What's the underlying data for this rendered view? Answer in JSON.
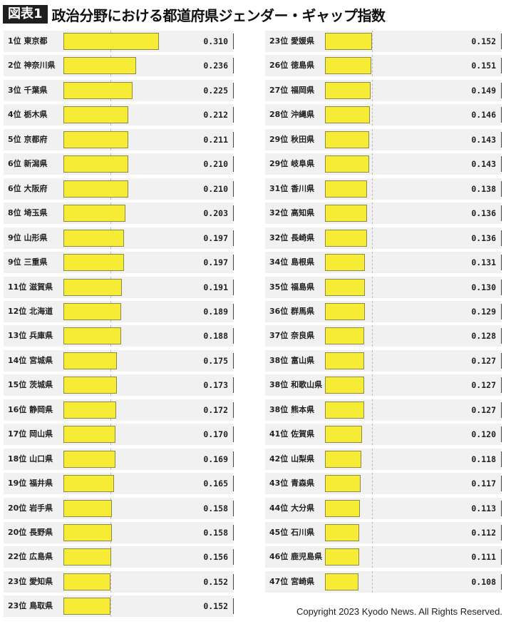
{
  "header": {
    "badge": "図表1",
    "title": "政治分野における都道府県ジェンダー・ギャップ指数"
  },
  "copyright": "Copyright 2023 Kyodo News. All Rights Reserved.",
  "colors": {
    "bar": "#f7ec35",
    "badge": "#1f1f1f",
    "row_bg": "#f1f1f1"
  },
  "chart_data": {
    "type": "bar",
    "orientation": "horizontal",
    "title": "政治分野における都道府県ジェンダー・ギャップ指数",
    "xlim": [
      0,
      0.5
    ],
    "reference_line": 0.152,
    "categories": [
      "1位 東京都",
      "2位 神奈川県",
      "3位 千葉県",
      "4位 栃木県",
      "5位 京都府",
      "6位 新潟県",
      "6位 大阪府",
      "8位 埼玉県",
      "9位 山形県",
      "9位 三重県",
      "11位 滋賀県",
      "12位 北海道",
      "13位 兵庫県",
      "14位 宮城県",
      "15位 茨城県",
      "16位 静岡県",
      "17位 岡山県",
      "18位 山口県",
      "19位 福井県",
      "20位 岩手県",
      "20位 長野県",
      "22位 広島県",
      "23位 愛知県",
      "23位 鳥取県",
      "23位 愛媛県",
      "26位 徳島県",
      "27位 福岡県",
      "28位 沖縄県",
      "29位 秋田県",
      "29位 岐阜県",
      "31位 香川県",
      "32位 高知県",
      "32位 長崎県",
      "34位 島根県",
      "35位 福島県",
      "36位 群馬県",
      "37位 奈良県",
      "38位 富山県",
      "38位 和歌山県",
      "38位 熊本県",
      "41位 佐賀県",
      "42位 山梨県",
      "43位 青森県",
      "44位 大分県",
      "45位 石川県",
      "46位 鹿児島県",
      "47位 宮崎県"
    ],
    "values": [
      0.31,
      0.236,
      0.225,
      0.212,
      0.211,
      0.21,
      0.21,
      0.203,
      0.197,
      0.197,
      0.191,
      0.189,
      0.188,
      0.175,
      0.173,
      0.172,
      0.17,
      0.169,
      0.165,
      0.158,
      0.158,
      0.156,
      0.152,
      0.152,
      0.152,
      0.151,
      0.149,
      0.146,
      0.143,
      0.143,
      0.138,
      0.136,
      0.136,
      0.131,
      0.13,
      0.129,
      0.128,
      0.127,
      0.127,
      0.127,
      0.12,
      0.118,
      0.117,
      0.113,
      0.112,
      0.111,
      0.108
    ],
    "value_labels": [
      "0.310",
      "0.236",
      "0.225",
      "0.212",
      "0.211",
      "0.210",
      "0.210",
      "0.203",
      "0.197",
      "0.197",
      "0.191",
      "0.189",
      "0.188",
      "0.175",
      "0.173",
      "0.172",
      "0.170",
      "0.169",
      "0.165",
      "0.158",
      "0.158",
      "0.156",
      "0.152",
      "0.152",
      "0.152",
      "0.151",
      "0.149",
      "0.146",
      "0.143",
      "0.143",
      "0.138",
      "0.136",
      "0.136",
      "0.131",
      "0.130",
      "0.129",
      "0.128",
      "0.127",
      "0.127",
      "0.127",
      "0.120",
      "0.118",
      "0.117",
      "0.113",
      "0.112",
      "0.111",
      "0.108"
    ]
  }
}
